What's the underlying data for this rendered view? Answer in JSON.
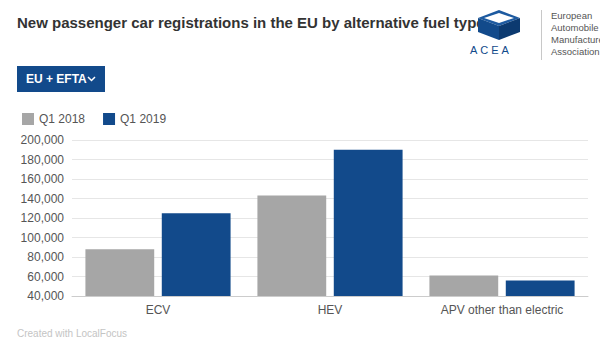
{
  "chart_data": {
    "type": "bar",
    "title": "New passenger car registrations in the EU by alternative fuel type",
    "filter": "EU + EFTA",
    "logo": {
      "abbreviation": "ACEA",
      "name": [
        "European",
        "Automobile",
        "Manufacturers",
        "Association"
      ]
    },
    "credit": "Created with LocalFocus",
    "categories": [
      "ECV",
      "HEV",
      "APV other than electric"
    ],
    "series": [
      {
        "name": "Q1 2018",
        "color": "#a6a6a6",
        "values": [
          88000,
          143000,
          61000
        ]
      },
      {
        "name": "Q1 2019",
        "color": "#124a8b",
        "values": [
          125000,
          190000,
          56000
        ]
      }
    ],
    "ylim": [
      40000,
      200000
    ],
    "yticks": [
      {
        "value": 40000,
        "label": "40,000"
      },
      {
        "value": 60000,
        "label": "60,000"
      },
      {
        "value": 80000,
        "label": "80,000"
      },
      {
        "value": 100000,
        "label": "100,000"
      },
      {
        "value": 120000,
        "label": "120,000"
      },
      {
        "value": 140000,
        "label": "140,000"
      },
      {
        "value": 160000,
        "label": "160,000"
      },
      {
        "value": 180000,
        "label": "180,000"
      },
      {
        "value": 200000,
        "label": "200,000"
      }
    ],
    "grid": true,
    "legend": "top-left",
    "data_labels": false
  }
}
